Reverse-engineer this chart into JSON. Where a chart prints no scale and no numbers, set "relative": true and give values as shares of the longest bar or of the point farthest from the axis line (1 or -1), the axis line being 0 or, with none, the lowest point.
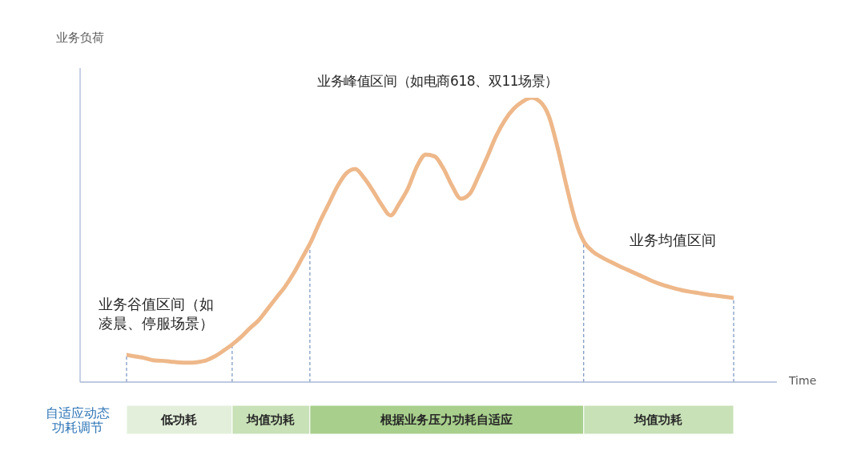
{
  "chart_data": [
    {
      "type": "line",
      "xlabel": "Time",
      "ylabel": "业务负荷",
      "relative": true,
      "marker": "none",
      "categories": [
        null,
        null,
        null,
        null,
        null,
        null,
        null,
        null,
        null,
        null,
        null,
        null,
        null,
        null,
        null,
        null,
        null,
        null,
        null,
        null,
        null,
        null,
        null,
        null,
        null,
        null,
        null,
        null,
        null,
        null,
        null,
        null,
        null,
        null,
        null,
        null,
        null,
        null,
        null,
        null,
        null,
        null,
        null,
        null,
        null,
        null,
        null,
        null,
        null,
        null,
        null,
        null,
        null,
        null,
        null,
        null,
        null,
        null,
        null,
        null,
        null,
        null,
        null,
        null,
        null,
        null,
        null,
        null,
        null,
        null
      ],
      "series": [
        {
          "color": "#eeb88a",
          "values": [
            0.096,
            0.09,
            0.085,
            0.077,
            0.075,
            0.072,
            0.069,
            0.068,
            0.07,
            0.076,
            0.09,
            0.11,
            0.132,
            0.158,
            0.189,
            0.217,
            0.256,
            0.296,
            0.335,
            0.383,
            0.439,
            0.496,
            0.566,
            0.628,
            0.69,
            0.735,
            0.749,
            0.718,
            0.673,
            0.623,
            0.586,
            0.628,
            0.682,
            0.758,
            0.8,
            0.794,
            0.752,
            0.69,
            0.645,
            0.662,
            0.724,
            0.792,
            0.865,
            0.921,
            0.961,
            0.986,
            1,
            0.986,
            0.935,
            0.823,
            0.69,
            0.569,
            0.493,
            0.459,
            0.439,
            0.423,
            0.408,
            0.394,
            0.38,
            0.366,
            0.352,
            0.341,
            0.332,
            0.324,
            0.318,
            0.313,
            0.308,
            0.304,
            0.3,
            0.296
          ]
        }
      ],
      "annotations": [
        "业务谷值区间（如凌晨、停服场景）",
        "业务峰值区间（如电商618、双11场景）",
        "业务均值区间"
      ]
    },
    {
      "type": "bar",
      "orientation": "horizontal",
      "stacked": true,
      "relative": true,
      "tick_labels": "y",
      "categories": [
        "自适应动态功耗调节"
      ],
      "series": [
        {
          "name": "低功耗",
          "color": "#e3efdb",
          "values": [
            0.174
          ]
        },
        {
          "name": "均值功耗",
          "color": "#c8e1b7",
          "values": [
            0.128
          ]
        },
        {
          "name": "根据业务压力功耗自适应",
          "color": "#a8cf8c",
          "values": [
            0.451
          ]
        },
        {
          "name": "均值功耗",
          "color": "#c8e1b7",
          "values": [
            0.247
          ]
        }
      ]
    }
  ]
}
